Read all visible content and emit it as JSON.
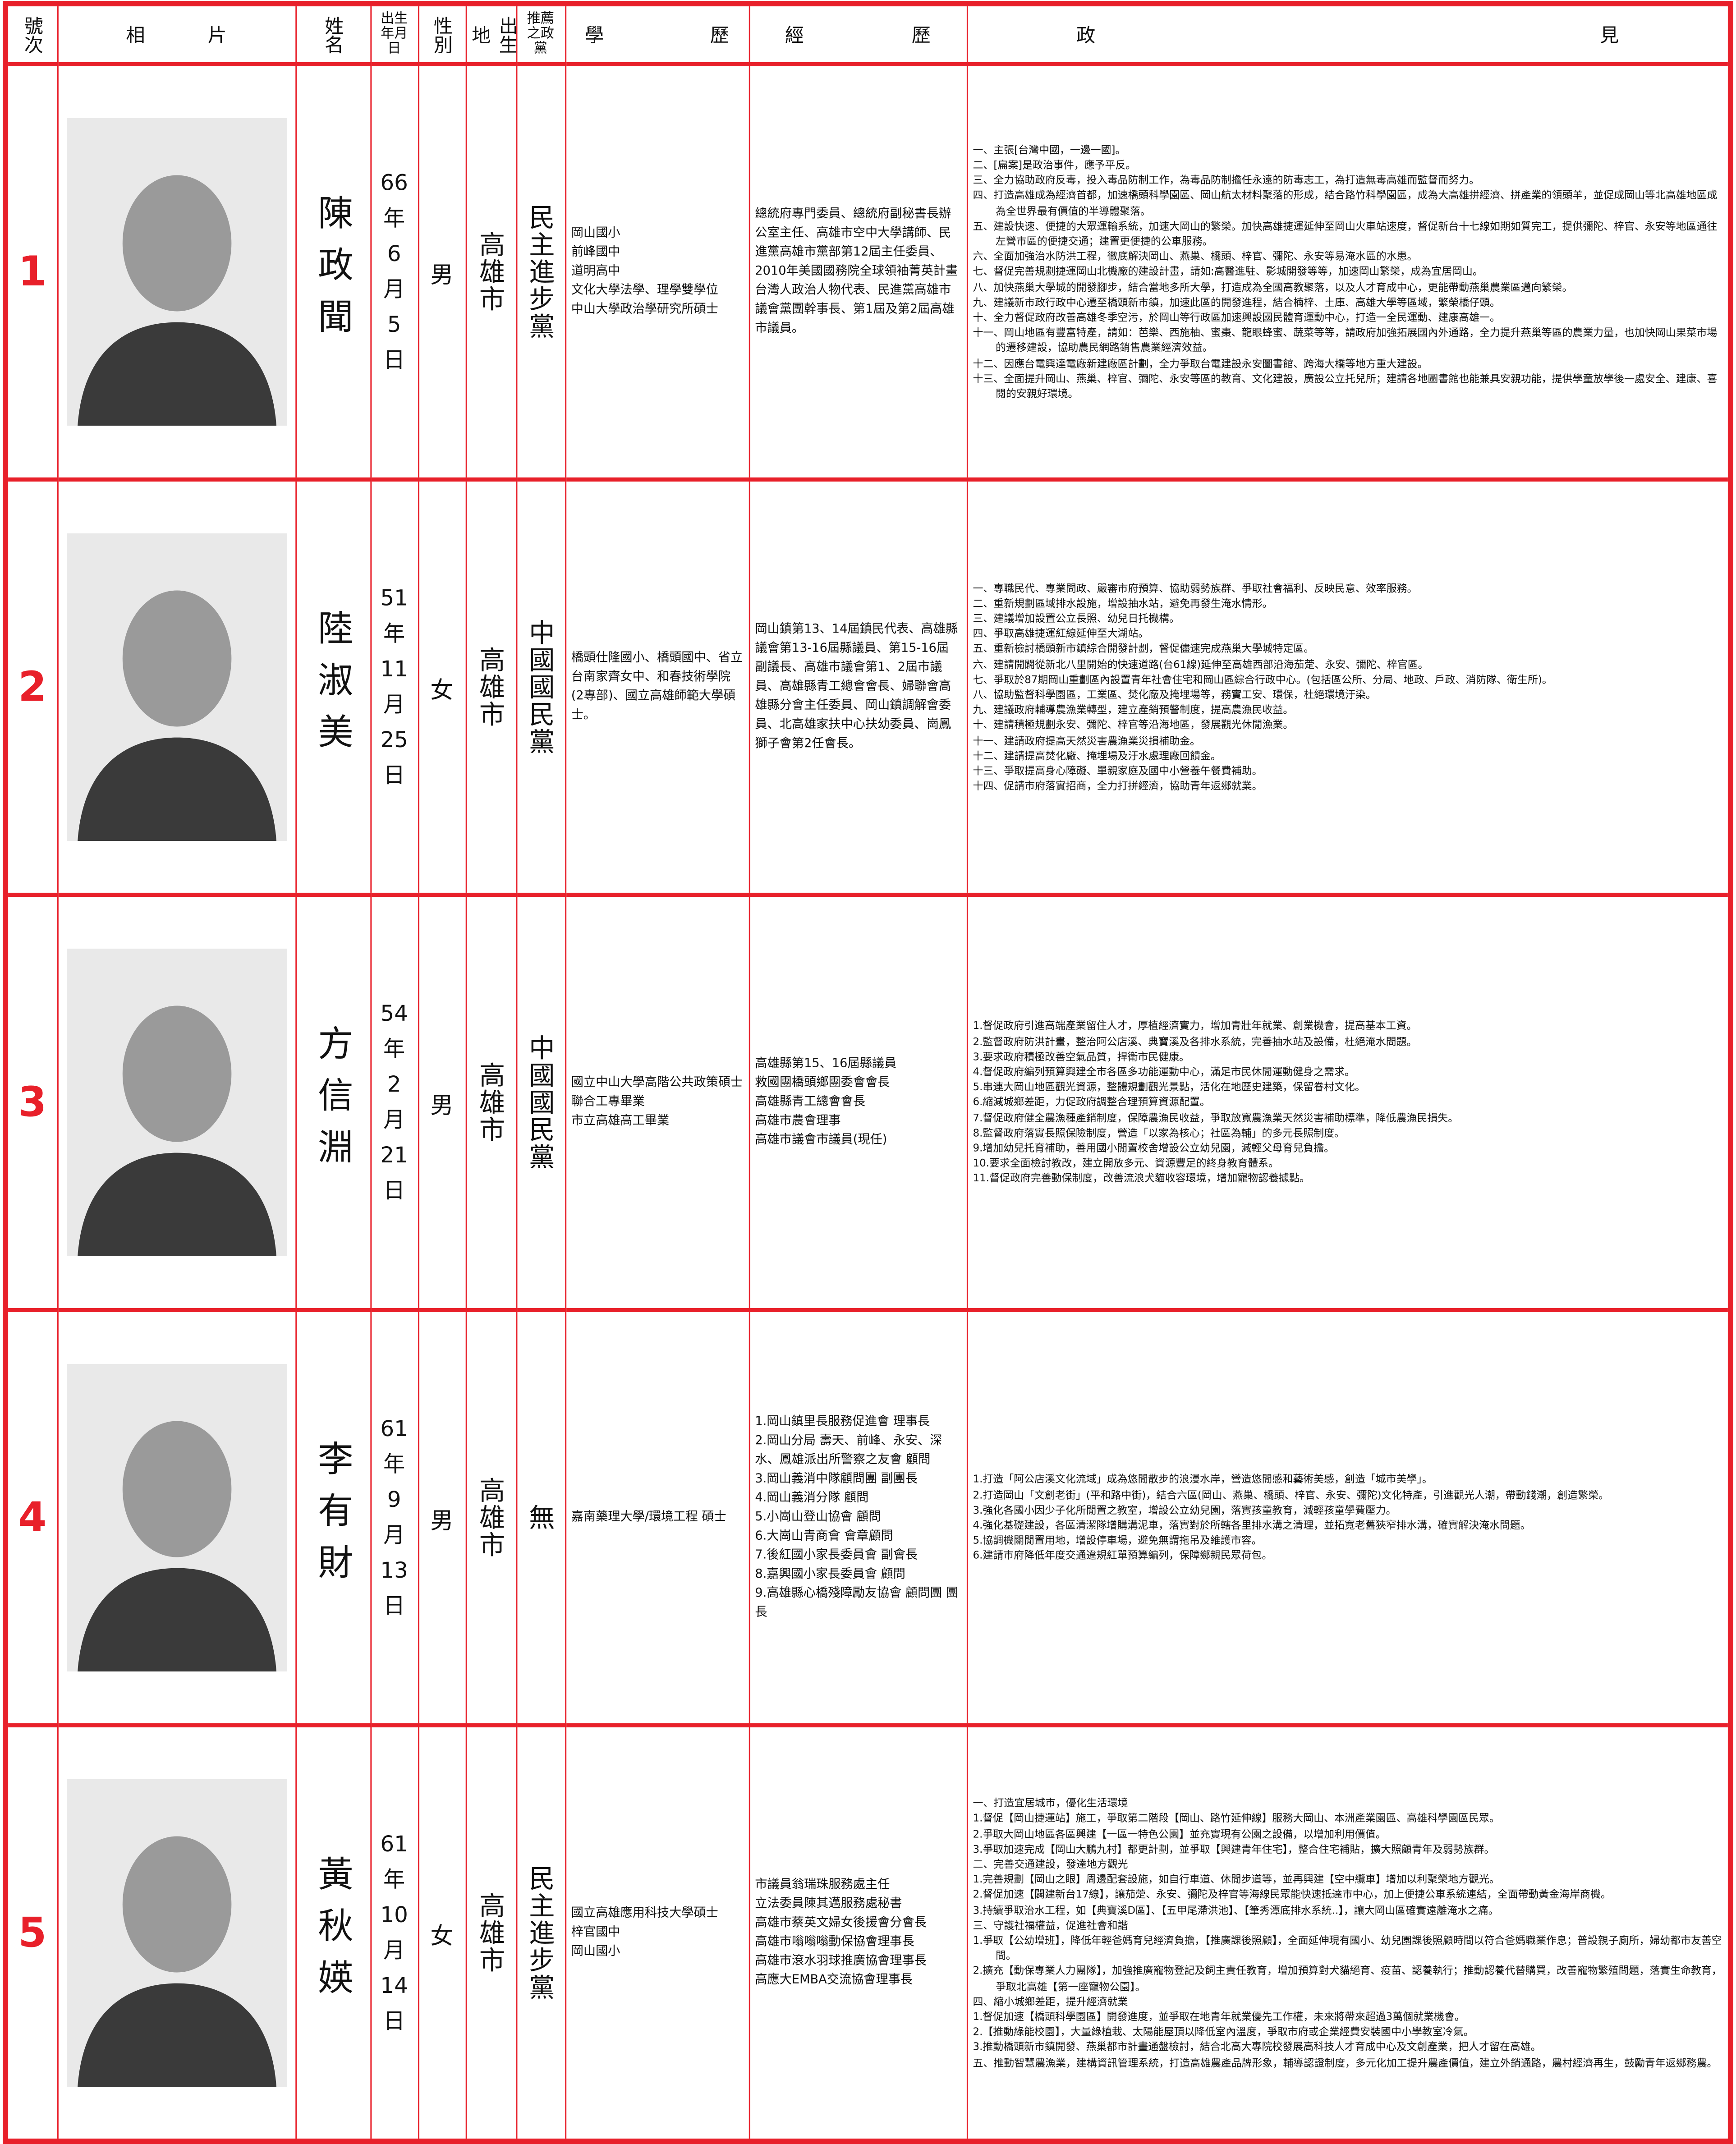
{
  "header": [
    "號次",
    "相片",
    "姓名",
    "出生年月日",
    "性別",
    "出生地",
    "推薦之政黨",
    "學歷",
    "經歷",
    "政見"
  ],
  "candidates": [
    {
      "number": "1",
      "name": "陳政聞",
      "birth": [
        "66",
        "年",
        "6",
        "月",
        "5",
        "日"
      ],
      "gender": "男",
      "birthplace": "高雄市",
      "party": "民主進步黨",
      "education": [
        "岡山國小",
        "前峰國中",
        "道明高中",
        "文化大學法學、理學雙學位",
        "中山大學政治學研究所碩士"
      ],
      "experience": [
        "總統府專門委員、總統府副秘書長辦公室主任、高雄市空中大學講師、民進黨高雄市黨部第12屆主任委員、2010年美國國務院全球領袖菁英計畫台灣人政治人物代表、民進黨高雄市議會黨團幹事長、第1屆及第2屆高雄市議員。"
      ],
      "platform": [
        "一、主張[台灣中國，一邊一國]。",
        "二、[扁案]是政治事件，應予平反。",
        "三、全力協助政府反毒，投入毒品防制工作，為毒品防制擔任永遠的防毒志工，為打造無毒高雄而監督而努力。",
        "四、打造高雄成為經濟首都，加速橋頭科學園區、岡山航太材料聚落的形成，結合路竹科學園區，成為大高雄拼經濟、拼產業的領頭羊，並促成岡山等北高雄地區成為全世界最有價值的半導體聚落。",
        "五、建設快速、便捷的大眾運輸系統，加速大岡山的繁榮。加快高雄捷運延伸至岡山火車站速度，督促新台十七線如期如質完工，提供彌陀、梓官、永安等地區通往左營市區的便捷交通；建置更便捷的公車服務。",
        "六、全面加強治水防洪工程，徹底解決岡山、燕巢、橋頭、梓官、彌陀、永安等易淹水區的水患。",
        "七、督促完善規劃捷運岡山北機廠的建設計畫，請如:高醫進駐、影城開發等等，加速岡山繁榮，成為宜居岡山。",
        "八、加快燕巢大學城的開發腳步，結合當地多所大學，打造成為全國高教聚落，以及人才育成中心，更能帶動燕巢農業區邁向繁榮。",
        "九、建議新市政行政中心遷至橋頭新市鎮，加速此區的開發進程，結合楠梓、土庫、高雄大學等區域，繁榮橋仔頭。",
        "十、全力督促政府改善高雄冬季空污，於岡山等行政區加速興設國民體育運動中心，打造一全民運動、建康高雄一。",
        "十一、岡山地區有豐富特產，請如：芭樂、西施柚、蜜棗、龍眼蜂蜜、蔬菜等等，請政府加強拓展國內外通路，全力提升燕巢等區的農業力量，也加快岡山果菜市場的遷移建設，協助農民網路銷售農業經濟效益。",
        "十二、因應台電興達電廠新建廠區計劃，全力爭取台電建設永安圖書館、跨海大橋等地方重大建設。",
        "十三、全面提升岡山、燕巢、梓官、彌陀、永安等區的教育、文化建設，廣設公立托兒所；建請各地圖書館也能兼具安親功能，提供學童放學後一處安全、建康、喜閱的安親好環境。"
      ]
    },
    {
      "number": "2",
      "name": "陸淑美",
      "birth": [
        "51",
        "年",
        "11",
        "月",
        "25",
        "日"
      ],
      "gender": "女",
      "birthplace": "高雄市",
      "party": "中國國民黨",
      "education": [
        "橋頭仕隆國小、橋頭國中、省立台南家齊女中、和春技術學院(2專部)、國立高雄師範大學碩士。"
      ],
      "experience": [
        "岡山鎮第13、14屆鎮民代表、高雄縣議會第13-16屆縣議員、第15-16屆副議長、高雄市議會第1、2屆市議員、高雄縣青工總會會長、婦聯會高雄縣分會主任委員、岡山鎮調解會委員、北高雄家扶中心扶幼委員、崗鳳獅子會第2任會長。"
      ],
      "platform": [
        "一、專職民代、專業問政、嚴審市府預算、協助弱勢族群、爭取社會福利、反映民意、效率服務。",
        "二、重新規劃區域排水設施，增設抽水站，避免再發生淹水情形。",
        "三、建議增加設置公立長照、幼兒日托機構。",
        "四、爭取高雄捷運紅線延伸至大湖站。",
        "五、重新檢討橋頭新市鎮綜合開發計劃，督促儘速完成燕巢大學城特定區。",
        "六、建請開闢從新北八里開始的快速道路(台61線)延伸至高雄西部沿海茄萣、永安、彌陀、梓官區。",
        "七、爭取於87期岡山重劃區內設置青年社會住宅和岡山區綜合行政中心。(包括區公所、分局、地政、戶政、消防隊、衛生所)。",
        "八、協助監督科學園區，工業區、焚化廠及掩埋場等，務實工安、環保，杜絕環境汙染。",
        "九、建議政府輔導農漁業轉型，建立產銷預警制度，提高農漁民收益。",
        "十、建請積極規劃永安、彌陀、梓官等沿海地區，發展觀光休閒漁業。",
        "十一、建請政府提高天然災害農漁業災損補助金。",
        "十二、建請提高焚化廠、掩埋場及汙水處理廠回饋金。",
        "十三、爭取提高身心障礙、單親家庭及國中小營養午餐費補助。",
        "十四、促請市府落實招商，全力打拼經濟，協助青年返鄉就業。"
      ]
    },
    {
      "number": "3",
      "name": "方信淵",
      "birth": [
        "54",
        "年",
        "2",
        "月",
        "21",
        "日"
      ],
      "gender": "男",
      "birthplace": "高雄市",
      "party": "中國國民黨",
      "education": [
        "國立中山大學高階公共政策碩士",
        "聯合工專畢業",
        "市立高雄高工畢業"
      ],
      "experience": [
        "高雄縣第15、16屆縣議員",
        "救國團橋頭鄉團委會會長",
        "高雄縣青工總會會長",
        "高雄市農會理事",
        "高雄市議會市議員(現任)"
      ],
      "platform": [
        "1.督促政府引進高端產業留住人才，厚植經濟實力，增加青壯年就業、創業機會，提高基本工資。",
        "2.監督政府防洪計畫，整治阿公店溪、典寶溪及各排水系統，完善抽水站及設備，杜絕淹水問題。",
        "3.要求政府積極改善空氣品質，捍衛市民健康。",
        "4.督促政府編列預算興建全市各區多功能運動中心，滿足市民休閒運動健身之需求。",
        "5.串連大岡山地區觀光資源，整體規劃觀光景點，活化在地歷史建築，保留眷村文化。",
        "6.縮減城鄉差距，力促政府調整合理預算資源配置。",
        "7.督促政府健全農漁種產銷制度，保障農漁民收益，爭取放寬農漁業天然災害補助標準，降低農漁民損失。",
        "8.監督政府落實長照保險制度，營造「以家為核心；社區為輔」的多元長照制度。",
        "9.增加幼兒托育補助，善用國小閒置校舍增設公立幼兒園，減輕父母育兒負擔。",
        "10.要求全面檢討教改，建立開放多元、資源豐足的終身教育體系。",
        "11.督促政府完善動保制度，改善流浪犬貓收容環境，增加寵物認養據點。"
      ]
    },
    {
      "number": "4",
      "name": "李有財",
      "birth": [
        "61",
        "年",
        "9",
        "月",
        "13",
        "日"
      ],
      "gender": "男",
      "birthplace": "高雄市",
      "party": "無",
      "education": [
        "嘉南藥理大學/環境工程 碩士"
      ],
      "experience": [
        "1.岡山鎮里長服務促進會 理事長",
        "2.岡山分局 壽天、前峰、永安、深水、鳳雄派出所警察之友會 顧問",
        "3.岡山義消中隊顧問團 副團長",
        "4.岡山義消分隊 顧問",
        "5.小崗山登山協會 顧問",
        "6.大崗山青商會 會章顧問",
        "7.後紅國小家長委員會 副會長",
        "8.嘉興國小家長委員會 顧問",
        "9.高雄縣心橋殘障勵友協會 顧問團 團長"
      ],
      "platform": [
        "1.打造「阿公店溪文化流域」成為悠閒散步的浪漫水岸，營造悠閒感和藝術美感，創造「城市美學」。",
        "2.打造岡山「文創老街」(平和路中街)，結合六區(岡山、燕巢、橋頭、梓官、永安、彌陀)文化特產，引進觀光人潮，帶動錢潮，創造繁榮。",
        "3.強化各國小因少子化所閒置之教室，增設公立幼兒園，落實孩童教育，減輕孩童學費壓力。",
        "4.強化基礎建設，各區清潔隊增購溝泥車，落實對於所轄各里排水溝之清理，並拓寬老舊狹窄排水溝，確實解決淹水問題。",
        "5.協調機關閒置用地，增設停車場，避免無謂拖吊及維護市容。",
        "6.建請市府降低年度交通違規紅單預算編列，保障鄉親民眾荷包。"
      ]
    },
    {
      "number": "5",
      "name": "黃秋媖",
      "birth": [
        "61",
        "年",
        "10",
        "月",
        "14",
        "日"
      ],
      "gender": "女",
      "birthplace": "高雄市",
      "party": "民主進步黨",
      "education": [
        "國立高雄應用科技大學碩士",
        "梓官國中",
        "岡山國小"
      ],
      "experience": [
        "市議員翁瑞珠服務處主任",
        "立法委員陳其邁服務處秘書",
        "高雄市蔡英文婦女後援會分會長",
        "高雄市嗡嗡嗡動保協會理事長",
        "高雄市滾水羽球推廣協會理事長",
        "高應大EMBA交流協會理事長"
      ],
      "platform": [
        "一、打造宜居城市，優化生活環境",
        "1.督促【岡山捷運站】施工，爭取第二階段【岡山、路竹延伸線】服務大岡山、本洲產業園區、高雄科學園區民眾。",
        "2.爭取大岡山地區各區興建【一區一特色公園】並充實現有公園之設備，以增加利用價值。",
        "3.爭取加速完成【岡山大鵬九村】都更計劃，並爭取【興建青年住宅】，整合住宅補貼，擴大照顧青年及弱勢族群。",
        "二、完善交通建設，發達地方觀光",
        "1.完善規劃【岡山之眼】周邊配套設施，如自行車道、休閒步道等，並再興建【空中纜車】增加以利聚榮地方觀光。",
        "2.督促加速【闢建新台17線】，讓茄萣、永安、彌陀及梓官等海線民眾能快速抵達市中心，加上便捷公車系統連結，全面帶動黃金海岸商機。",
        "3.持續爭取治水工程，如【典寶溪D區】、【五甲尾滯洪池】、【筆秀潭底排水系統..】，讓大岡山區確實遠離淹水之痛。",
        "三、守護社福權益，促進社會和諧",
        "1.爭取【公幼增班】，降低年輕爸媽育兒經濟負擔，【推廣課後照顧】，全面延伸現有國小、幼兒園課後照顧時間以符合爸媽職業作息；普設親子廁所，婦幼都市友善空間。",
        "2.擴充【動保專業人力團隊】，加強推廣寵物登記及飼主責任教育，增加預算對犬貓絕育、疫苗、認養執行；推動認養代替購買，改善寵物繁殖問題，落實生命教育，爭取北高雄【第一座寵物公園】。",
        "四、縮小城鄉差距，提升經濟就業",
        "1.督促加速【橋頭科學園區】開發進度，並爭取在地青年就業優先工作權，未來將帶來超過3萬個就業機會。",
        "2.【推動綠能校園】，大量綠植栽、太陽能屋頂以降低室內溫度，爭取市府或企業經費安裝國中小學教室冷氣。",
        "3.推動橋頭新市鎮開發、燕巢都市計畫通盤檢討，結合北高大專院校發展高科技人才育成中心及文創產業，把人才留在高雄。",
        "五、推動智慧農漁業，建構資訊管理系統，打造高雄農產品牌形象，輔導認證制度，多元化加工提升農產價值，建立外銷通路，農村經濟再生，鼓勵青年返鄉務農。"
      ]
    }
  ]
}
